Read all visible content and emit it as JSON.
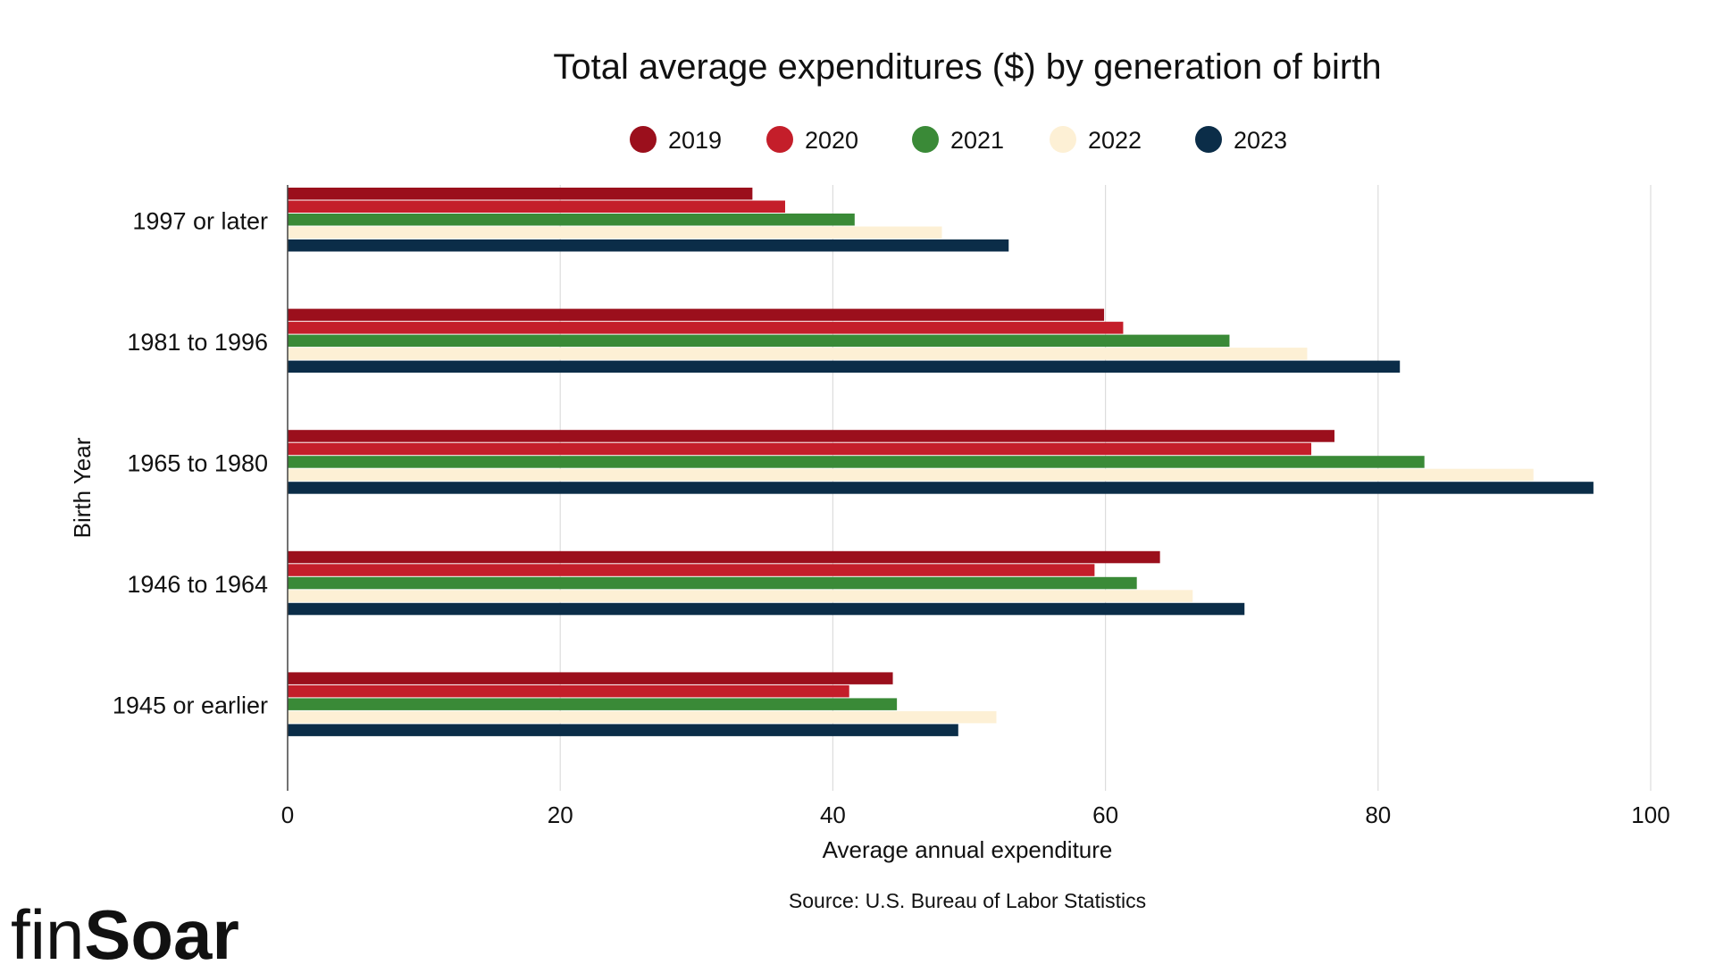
{
  "chart_data": {
    "type": "bar",
    "orientation": "horizontal",
    "title": "Total average expenditures ($) by generation of birth",
    "xlabel": "Average annual expenditure",
    "ylabel": "Birth Year",
    "xlim": [
      0,
      100
    ],
    "xticks": [
      "0",
      "20",
      "40",
      "60",
      "80",
      "100"
    ],
    "grid": true,
    "legend_position": "top",
    "categories": [
      "1997 or later",
      "1981 to 1996",
      "1965 to 1980",
      "1946 to 1964",
      "1945 or earlier"
    ],
    "series": [
      {
        "name": "2019",
        "color": "#9b0f1c",
        "values": [
          34.1,
          59.9,
          76.8,
          64.0,
          44.4
        ]
      },
      {
        "name": "2020",
        "color": "#c41e2a",
        "values": [
          36.5,
          61.3,
          75.1,
          59.2,
          41.2
        ]
      },
      {
        "name": "2021",
        "color": "#3a8a37",
        "values": [
          41.6,
          69.1,
          83.4,
          62.3,
          44.7
        ]
      },
      {
        "name": "2022",
        "color": "#fdf0d5",
        "values": [
          48.0,
          74.8,
          91.4,
          66.4,
          52.0
        ]
      },
      {
        "name": "2023",
        "color": "#0b2d48",
        "values": [
          52.9,
          81.6,
          95.8,
          70.2,
          49.2
        ]
      }
    ]
  },
  "source": "Source: U.S. Bureau of Labor Statistics",
  "brand": {
    "light": "fin",
    "bold": "Soar"
  }
}
